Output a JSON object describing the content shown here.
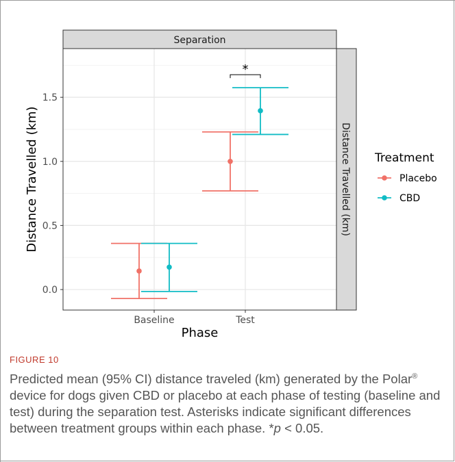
{
  "chart_data": {
    "type": "errorbar",
    "facet_top_label": "Separation",
    "facet_right_label": "Distance Travelled (km)",
    "xlabel": "Phase",
    "ylabel": "Distance Travelled (km)",
    "categories": [
      "Baseline",
      "Test"
    ],
    "ylim": [
      -0.16,
      1.88
    ],
    "yticks": [
      0.0,
      0.5,
      1.0,
      1.5
    ],
    "ytick_labels": [
      "0.0",
      "0.5",
      "1.0",
      "1.5"
    ],
    "grid": true,
    "legend": {
      "title": "Treatment",
      "position": "right"
    },
    "series": [
      {
        "name": "Placebo",
        "color": "#f07167",
        "mean": [
          0.145,
          1.0
        ],
        "lower": [
          -0.07,
          0.77
        ],
        "upper": [
          0.36,
          1.23
        ]
      },
      {
        "name": "CBD",
        "color": "#11bcc5",
        "mean": [
          0.175,
          1.395
        ],
        "lower": [
          -0.015,
          1.21
        ],
        "upper": [
          0.36,
          1.575
        ]
      }
    ],
    "annotations": [
      {
        "text": "*",
        "category": "Test"
      }
    ]
  },
  "caption": {
    "label": "FIGURE 10",
    "text_pre": "Predicted mean (95% CI) distance traveled (km) generated by the Polar",
    "superscript": "®",
    "text_mid": " device for dogs given CBD or placebo at each phase of testing (baseline and test) during the separation test. Asterisks indicate significant differences between treatment groups within each phase. *",
    "p_symbol": "p",
    "text_post": " < 0.05."
  }
}
